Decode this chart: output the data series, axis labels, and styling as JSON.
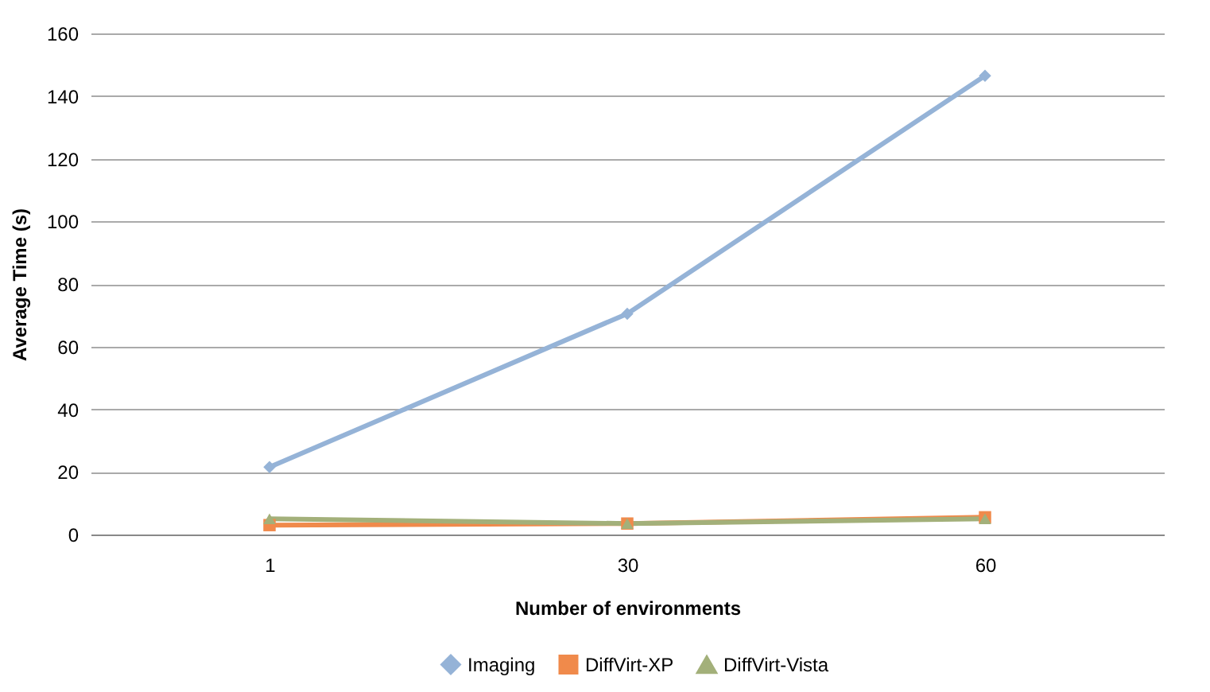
{
  "chart_data": {
    "type": "line",
    "xlabel": "Number of environments",
    "ylabel": "Average Time (s)",
    "categories": [
      "1",
      "30",
      "60"
    ],
    "series": [
      {
        "name": "Imaging",
        "color": "#95b3d7",
        "marker": "diamond",
        "values": [
          21.5,
          70.5,
          146.5
        ]
      },
      {
        "name": "DiffVirt-XP",
        "color": "#f08a4b",
        "marker": "square",
        "values": [
          3,
          3.5,
          5.5
        ]
      },
      {
        "name": "DiffVirt-Vista",
        "color": "#a3b07a",
        "marker": "triangle",
        "values": [
          5,
          3.5,
          5
        ]
      }
    ],
    "ylim": [
      0,
      160
    ],
    "yticks": [
      0,
      20,
      40,
      60,
      80,
      100,
      120,
      140,
      160
    ],
    "grid": "y",
    "legend": "bottom"
  }
}
